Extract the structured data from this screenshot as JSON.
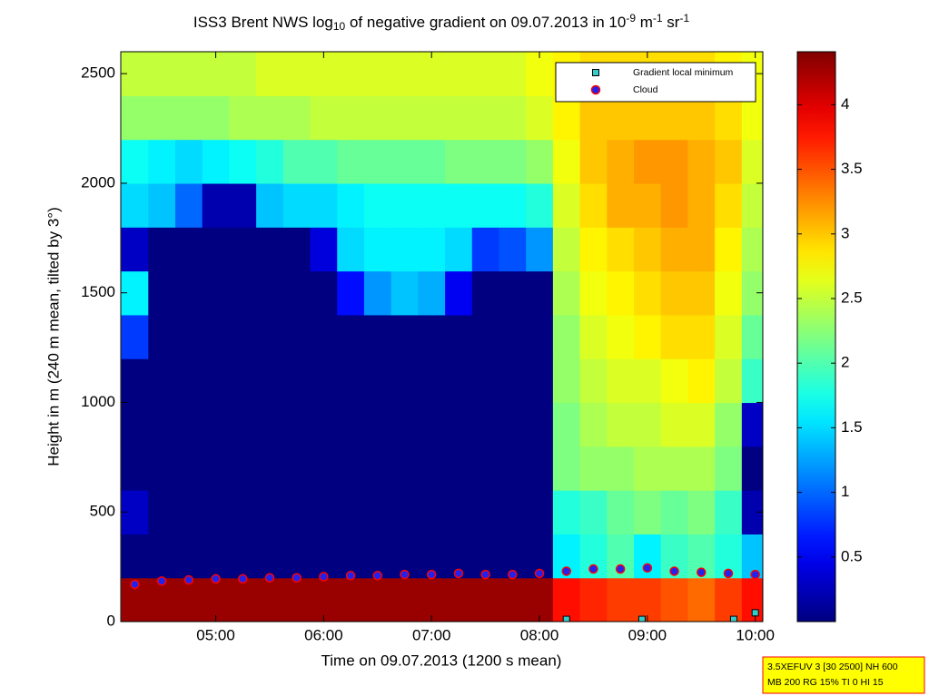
{
  "chart_data": {
    "type": "heatmap",
    "title": [
      {
        "text": "ISS3 Brent NWS log"
      },
      {
        "text": "10",
        "script": "sub"
      },
      {
        "text": " of negative gradient on 09.07.2013 in 10"
      },
      {
        "text": "-9",
        "script": "super"
      },
      {
        "text": " m"
      },
      {
        "text": "-1",
        "script": "super"
      },
      {
        "text": " sr"
      },
      {
        "text": "-1",
        "script": "super"
      }
    ],
    "x_label": "Time on 09.07.2013 (1200 s mean)",
    "y_label": "Height in m (240 m mean, tilted by 3°)",
    "xlim": [
      4.12,
      10.07
    ],
    "xticks": [
      {
        "value": 5,
        "label": "05:00"
      },
      {
        "value": 6,
        "label": "06:00"
      },
      {
        "value": 7,
        "label": "07:00"
      },
      {
        "value": 8,
        "label": "08:00"
      },
      {
        "value": 9,
        "label": "09:00"
      },
      {
        "value": 10,
        "label": "10:00"
      }
    ],
    "ylim": [
      0,
      2600
    ],
    "yticks": [
      0,
      500,
      1000,
      1500,
      2000,
      2500
    ],
    "colormap": "jet",
    "clim": [
      0,
      4.41
    ],
    "cticks": [
      0.5,
      1,
      1.5,
      2,
      2.5,
      3,
      3.5,
      4
    ],
    "x": [
      4.25,
      4.5,
      4.75,
      5.0,
      5.25,
      5.5,
      5.75,
      6.0,
      6.25,
      6.5,
      6.75,
      7.0,
      7.25,
      7.5,
      7.75,
      8.0,
      8.25,
      8.5,
      8.75,
      9.0,
      9.25,
      9.5,
      9.75,
      10.0
    ],
    "y": [
      100,
      300,
      500,
      700,
      900,
      1100,
      1300,
      1500,
      1700,
      1900,
      2100,
      2300,
      2500
    ],
    "z": [
      [
        4.3,
        4.3,
        4.3,
        4.3,
        4.3,
        4.3,
        4.3,
        4.3,
        4.3,
        4.3,
        4.3,
        4.3,
        4.3,
        4.3,
        4.3,
        4.3,
        3.8,
        3.7,
        3.6,
        3.6,
        3.5,
        3.4,
        3.6,
        3.8
      ],
      [
        0,
        0,
        0,
        0,
        0,
        0,
        0,
        0,
        0,
        0,
        0,
        0,
        0,
        0,
        0,
        0,
        1.6,
        1.8,
        2.0,
        1.6,
        1.9,
        2.0,
        1.8,
        1.4
      ],
      [
        0.3,
        0,
        0,
        0,
        0,
        0,
        0,
        0,
        0,
        0,
        0,
        0,
        0,
        0,
        0,
        0,
        1.8,
        1.9,
        2.1,
        2.2,
        2.1,
        2.2,
        1.9,
        0.2
      ],
      [
        0,
        0,
        0,
        0,
        0,
        0,
        0,
        0,
        0,
        0,
        0,
        0,
        0,
        0,
        0,
        0,
        2.2,
        2.3,
        2.3,
        2.4,
        2.4,
        2.4,
        2.2,
        0
      ],
      [
        0,
        0,
        0,
        0,
        0,
        0,
        0,
        0,
        0,
        0,
        0,
        0,
        0,
        0,
        0,
        0,
        2.2,
        2.4,
        2.5,
        2.5,
        2.6,
        2.6,
        2.3,
        0.3
      ],
      [
        0,
        0,
        0,
        0,
        0,
        0,
        0,
        0,
        0,
        0,
        0,
        0,
        0,
        0,
        0,
        0,
        2.3,
        2.5,
        2.6,
        2.6,
        2.7,
        2.8,
        2.5,
        1.9
      ],
      [
        0.8,
        0,
        0,
        0,
        0,
        0,
        0,
        0,
        0,
        0,
        0,
        0,
        0,
        0,
        0,
        0,
        2.3,
        2.6,
        2.7,
        2.8,
        2.9,
        2.9,
        2.6,
        2.1
      ],
      [
        1.6,
        0,
        0,
        0,
        0,
        0,
        0,
        0,
        0.6,
        1.2,
        1.4,
        1.3,
        0.5,
        0,
        0,
        0,
        2.4,
        2.7,
        2.8,
        2.9,
        3.0,
        3.0,
        2.7,
        2.3
      ],
      [
        0.3,
        0,
        0,
        0,
        0,
        0,
        0,
        0.4,
        1.5,
        1.6,
        1.6,
        1.6,
        1.5,
        0.8,
        0.9,
        1.2,
        2.5,
        2.8,
        2.9,
        3.0,
        3.1,
        3.1,
        2.8,
        2.4
      ],
      [
        1.5,
        1.4,
        1.0,
        0.2,
        0.2,
        1.4,
        1.5,
        1.5,
        1.6,
        1.7,
        1.7,
        1.7,
        1.7,
        1.7,
        1.7,
        1.8,
        2.6,
        2.9,
        3.1,
        3.1,
        3.2,
        3.1,
        2.9,
        2.5
      ],
      [
        1.7,
        1.6,
        1.5,
        1.6,
        1.7,
        1.8,
        2.0,
        2.0,
        2.1,
        2.1,
        2.1,
        2.1,
        2.2,
        2.2,
        2.2,
        2.3,
        2.7,
        3.0,
        3.1,
        3.2,
        3.2,
        3.1,
        3.0,
        2.6
      ],
      [
        2.3,
        2.3,
        2.3,
        2.3,
        2.4,
        2.4,
        2.4,
        2.5,
        2.5,
        2.5,
        2.5,
        2.5,
        2.5,
        2.5,
        2.5,
        2.6,
        2.8,
        3.0,
        3.0,
        3.0,
        3.0,
        3.0,
        2.9,
        2.7
      ],
      [
        2.5,
        2.5,
        2.5,
        2.5,
        2.5,
        2.6,
        2.6,
        2.6,
        2.6,
        2.6,
        2.6,
        2.6,
        2.6,
        2.6,
        2.6,
        2.7,
        2.8,
        2.9,
        2.9,
        2.9,
        2.9,
        2.9,
        2.8,
        2.7
      ]
    ],
    "markers": [
      {
        "name": "Gradient local minimum",
        "shape": "square",
        "color": "#33cccc",
        "edge": "#000000",
        "x": [
          8.25,
          8.95,
          9.8,
          10.0
        ],
        "y": [
          10,
          10,
          10,
          40
        ]
      },
      {
        "name": "Cloud",
        "shape": "circle",
        "color": "#2222ee",
        "edge": "#ff0000",
        "x": [
          4.25,
          4.5,
          4.75,
          5.0,
          5.25,
          5.5,
          5.75,
          6.0,
          6.25,
          6.5,
          6.75,
          7.0,
          7.25,
          7.5,
          7.75,
          8.0,
          8.25,
          8.5,
          8.75,
          9.0,
          9.25,
          9.5,
          9.75,
          10.0
        ],
        "y": [
          170,
          185,
          190,
          195,
          195,
          200,
          200,
          205,
          210,
          210,
          215,
          215,
          220,
          215,
          215,
          220,
          230,
          240,
          240,
          245,
          230,
          225,
          220,
          215
        ]
      }
    ],
    "legend": "upper right",
    "annotation": [
      "3.5XEFUV 3 [30 2500] NH 600",
      "MB 200 RG 15% TI 0 HI 15"
    ]
  }
}
